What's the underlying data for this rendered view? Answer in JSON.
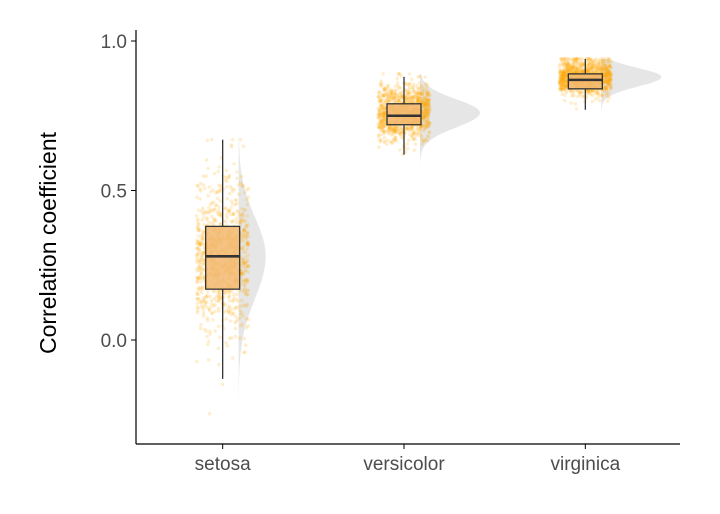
{
  "chart_data": {
    "type": "raincloud",
    "title": "",
    "xlabel": "",
    "ylabel": "Correlation coefficient",
    "ylim": [
      -0.35,
      1.0
    ],
    "y_ticks": [
      0.0,
      0.5,
      1.0
    ],
    "y_tick_labels": [
      "0.0",
      "0.5",
      "1.0"
    ],
    "grid": false,
    "colors": {
      "points": "#FFA500",
      "box_fill": "#F2B871",
      "box_line": "#333333",
      "density_fill": "#E6E6E6",
      "axis": "#000000"
    },
    "categories": [
      "setosa",
      "versicolor",
      "virginica"
    ],
    "groups": [
      {
        "name": "setosa",
        "box": {
          "min": -0.13,
          "q1": 0.17,
          "median": 0.28,
          "q3": 0.38,
          "max": 0.67
        },
        "points_range": [
          -0.28,
          0.67
        ],
        "density": {
          "mode": 0.28,
          "spread": 0.13,
          "range": [
            -0.3,
            0.68
          ]
        }
      },
      {
        "name": "versicolor",
        "box": {
          "min": 0.62,
          "q1": 0.72,
          "median": 0.75,
          "q3": 0.79,
          "max": 0.88
        },
        "points_range": [
          0.53,
          0.89
        ],
        "density": {
          "mode": 0.76,
          "spread": 0.045,
          "range": [
            0.53,
            0.89
          ]
        }
      },
      {
        "name": "virginica",
        "box": {
          "min": 0.77,
          "q1": 0.84,
          "median": 0.87,
          "q3": 0.89,
          "max": 0.94
        },
        "points_range": [
          0.66,
          0.94
        ],
        "density": {
          "mode": 0.88,
          "spread": 0.03,
          "range": [
            0.7,
            0.94
          ]
        }
      }
    ]
  }
}
